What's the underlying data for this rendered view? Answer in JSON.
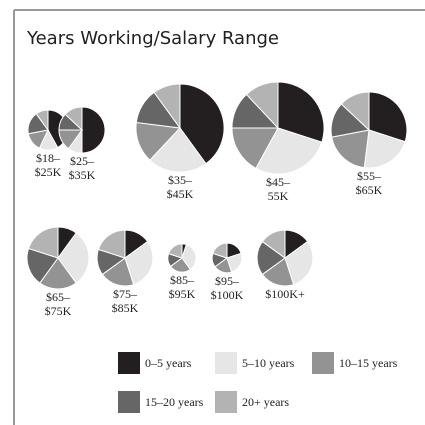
{
  "chart_data": {
    "type": "pie",
    "title": "Years Working/Salary Range",
    "categories": [
      [
        "$18–",
        "$25K"
      ],
      [
        "$25–",
        "$35K"
      ],
      [
        "$35–",
        "$45K"
      ],
      [
        "$45–",
        "55K"
      ],
      [
        "$55–",
        "$65K"
      ],
      [
        "$65–",
        "$75K"
      ],
      [
        "$75–",
        "$85K"
      ],
      [
        "$85–",
        "$95K"
      ],
      [
        "$95–",
        "$100K"
      ],
      [
        "$100K+"
      ]
    ],
    "totals": [
      400,
      530,
      1940,
      2120,
      1440,
      960,
      780,
      200,
      220,
      780
    ],
    "series": [
      {
        "name": "0–5 years",
        "color": "#231f20",
        "values": [
          42,
          50,
          40,
          30,
          30,
          10,
          15,
          5,
          20,
          15
        ]
      },
      {
        "name": "5–10 years",
        "color": "#e6e6e6",
        "values": [
          15,
          10,
          22,
          28,
          22,
          30,
          30,
          35,
          25,
          30
        ]
      },
      {
        "name": "10–15 years",
        "color": "#939393",
        "values": [
          15,
          15,
          15,
          17,
          20,
          20,
          20,
          25,
          20,
          20
        ]
      },
      {
        "name": "15–20 years",
        "color": "#666666",
        "values": [
          18,
          12,
          13,
          13,
          15,
          20,
          15,
          15,
          15,
          20
        ]
      },
      {
        "name": "20+ years",
        "color": "#b3b3b3",
        "values": [
          10,
          13,
          10,
          12,
          13,
          20,
          20,
          20,
          20,
          15
        ]
      }
    ]
  }
}
